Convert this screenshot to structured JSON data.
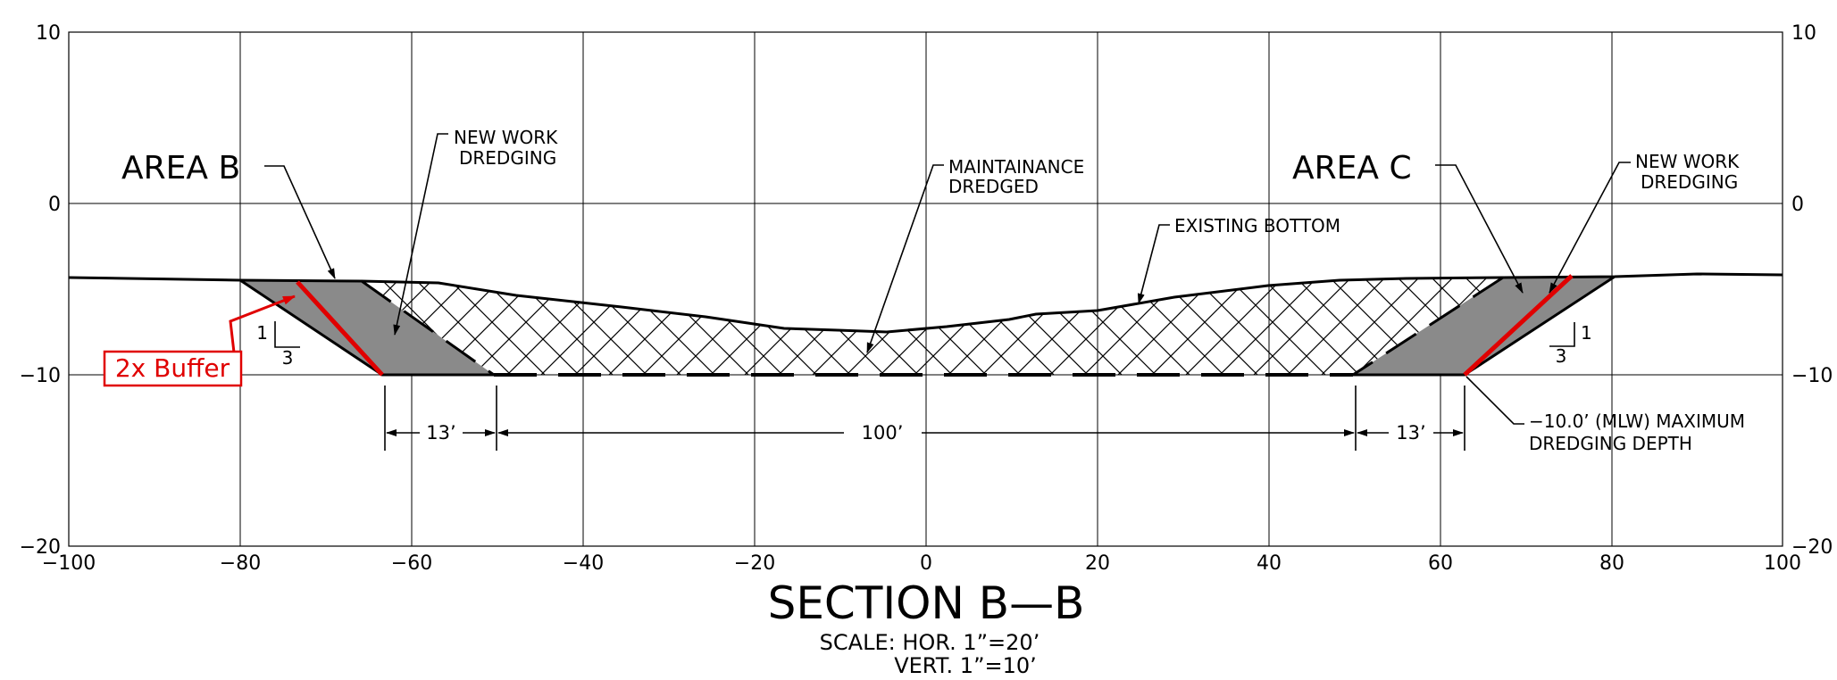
{
  "section": {
    "title": "SECTION B—B",
    "scale_line1": "SCALE:  HOR.  1”=20’",
    "scale_line2": "VERT.  1”=10’"
  },
  "axes": {
    "x_ticks": [
      "−100",
      "−80",
      "−60",
      "−40",
      "−20",
      "0",
      "20",
      "40",
      "60",
      "80",
      "100"
    ],
    "y_ticks_left": [
      "10",
      "0",
      "−10",
      "−20"
    ],
    "y_ticks_right": [
      "10",
      "0",
      "−10",
      "−20"
    ]
  },
  "labels": {
    "area_b": "AREA  B",
    "area_c": "AREA  C",
    "new_work_left_1": "NEW  WORK",
    "new_work_left_2": "DREDGING",
    "maint_1": "MAINTAINANCE",
    "maint_2": "DREDGED",
    "existing_bottom": "EXISTING  BOTTOM",
    "new_work_right_1": "NEW  WORK",
    "new_work_right_2": "DREDGING",
    "depth_1": "−10.0’  (MLW)  MAXIMUM",
    "depth_2": "DREDGING  DEPTH",
    "buffer": "2x Buffer",
    "slope_left_1": "1",
    "slope_left_3": "3",
    "slope_right_1": "1",
    "slope_right_3": "3"
  },
  "dimensions": {
    "left_bench": "13’",
    "channel_width": "100’",
    "right_bench": "13’"
  },
  "colors": {
    "buffer_red": "#e00000",
    "shaded_gray": "#8a8a8a"
  }
}
